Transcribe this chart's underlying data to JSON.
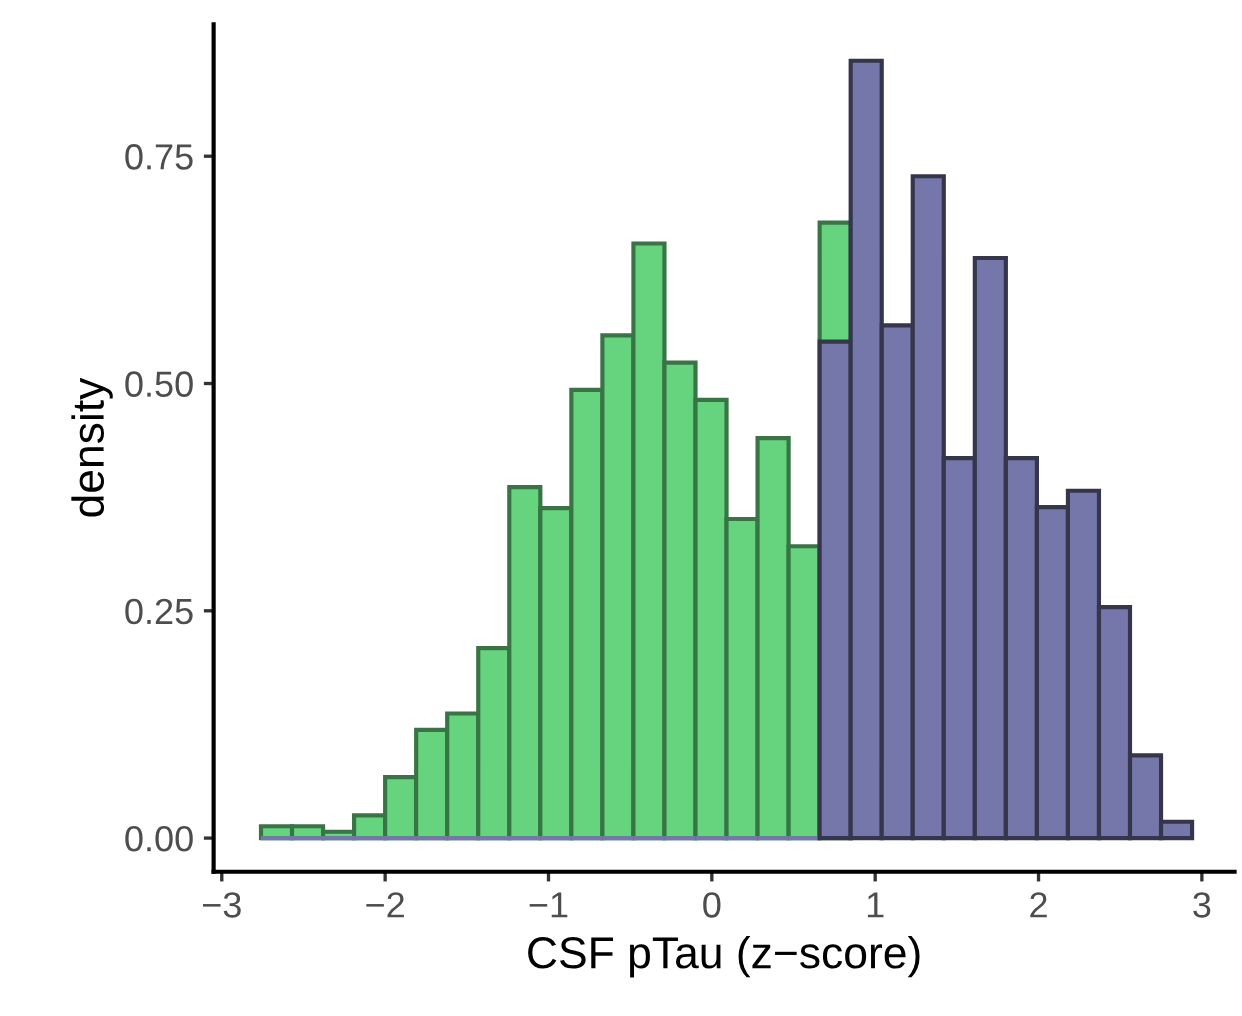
{
  "chart_data": {
    "type": "histogram",
    "xlabel": "CSF pTau (z−score)",
    "ylabel": "density",
    "bins": [
      -2.76,
      -2.57,
      -2.38,
      -2.19,
      -2.0,
      -1.81,
      -1.62,
      -1.43,
      -1.24,
      -1.05,
      -0.86,
      -0.67,
      -0.48,
      -0.29,
      -0.1,
      0.09,
      0.28,
      0.47,
      0.66,
      0.85,
      1.04,
      1.23,
      1.42,
      1.61,
      1.8,
      1.99,
      2.18,
      2.37,
      2.56,
      2.75,
      2.94
    ],
    "series": [
      {
        "color": "#66d47e",
        "values": [
          0.013,
          0.013,
          0.007,
          0.025,
          0.067,
          0.119,
          0.137,
          0.209,
          0.386,
          0.363,
          0.493,
          0.553,
          0.654,
          0.523,
          0.482,
          0.351,
          0.44,
          0.321,
          0.677,
          null,
          null,
          null,
          null,
          null,
          null,
          null,
          null,
          null,
          null,
          null
        ]
      },
      {
        "color": "#7577aa",
        "values": [
          0,
          0,
          0,
          0,
          0,
          0,
          0,
          0,
          0,
          0,
          0,
          0,
          0,
          0,
          0,
          0,
          0,
          0,
          0.546,
          0.855,
          0.564,
          0.728,
          0.418,
          0.638,
          0.418,
          0.364,
          0.382,
          0.254,
          0.091,
          0.018
        ]
      }
    ],
    "xlim": [
      -3.05,
      3.2
    ],
    "ylim": [
      -0.037,
      0.895
    ],
    "xticks": [
      {
        "value": -3,
        "label": "−3"
      },
      {
        "value": -2,
        "label": "−2"
      },
      {
        "value": -1,
        "label": "−1"
      },
      0,
      1,
      2,
      3
    ],
    "yticks": [
      {
        "value": 0,
        "label": "0.00"
      },
      {
        "value": 0.25,
        "label": "0.25"
      },
      {
        "value": 0.5,
        "label": "0.50"
      },
      {
        "value": 0.75,
        "label": "0.75"
      }
    ],
    "grid": false
  }
}
